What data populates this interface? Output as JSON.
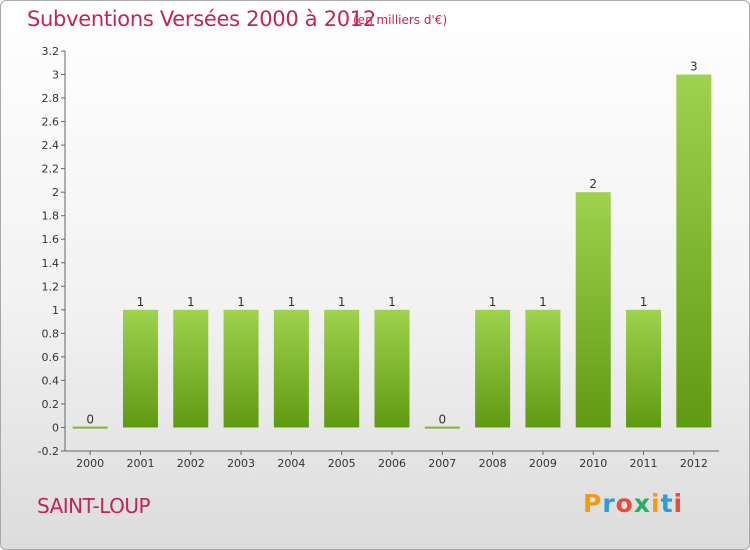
{
  "header": {
    "title": "Subventions Versées 2000 à 2012",
    "subtitle": "(en milliers d'€)"
  },
  "footer": {
    "commune": "SAINT-LOUP",
    "logo_text": "Proxiti"
  },
  "colors": {
    "bar_light": "#9fd24e",
    "bar_dark": "#5f9a12",
    "title": "#c0245c"
  },
  "chart_data": {
    "type": "bar",
    "title": "Subventions Versées 2000 à 2012",
    "subtitle": "(en milliers d'€)",
    "categories": [
      "2000",
      "2001",
      "2002",
      "2003",
      "2004",
      "2005",
      "2006",
      "2007",
      "2008",
      "2009",
      "2010",
      "2011",
      "2012"
    ],
    "values": [
      0,
      1,
      1,
      1,
      1,
      1,
      1,
      0,
      1,
      1,
      2,
      1,
      3
    ],
    "data_labels": [
      "0",
      "1",
      "1",
      "1",
      "1",
      "1",
      "1",
      "0",
      "1",
      "1",
      "2",
      "1",
      "3"
    ],
    "y_ticks": [
      "-0.2",
      "0",
      "0.2",
      "0.4",
      "0.6",
      "0.8",
      "1",
      "1.2",
      "1.4",
      "1.6",
      "1.8",
      "2",
      "2.2",
      "2.4",
      "2.6",
      "2.8",
      "3",
      "3.2"
    ],
    "ylim": [
      -0.2,
      3.2
    ],
    "xlabel": "",
    "ylabel": "",
    "grid": false,
    "legend": "none"
  }
}
